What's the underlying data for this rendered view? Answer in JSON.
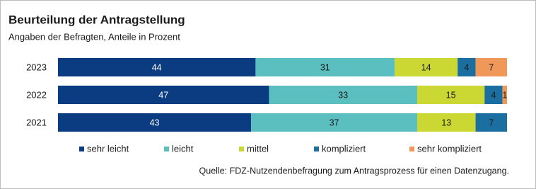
{
  "chart_data": {
    "type": "stacked-bar-horizontal",
    "title": "Beurteilung der Antragstellung",
    "subtitle": "Angaben der Befragten, Anteile in Prozent",
    "categories": [
      "2023",
      "2022",
      "2021"
    ],
    "series": [
      {
        "name": "sehr leicht",
        "color": "#0b3b80",
        "values": [
          44,
          47,
          43
        ]
      },
      {
        "name": "leicht",
        "color": "#5bbfc0",
        "values": [
          31,
          33,
          37
        ]
      },
      {
        "name": "mittel",
        "color": "#cbd834",
        "values": [
          14,
          15,
          13
        ]
      },
      {
        "name": "kompliziert",
        "color": "#1a6fa0",
        "values": [
          4,
          4,
          7
        ]
      },
      {
        "name": "sehr kompliziert",
        "color": "#f0975a",
        "values": [
          7,
          1,
          null
        ]
      }
    ],
    "source": "Quelle: FDZ-Nutzendenbefragung zum Antragsprozess für einen Datenzugang."
  }
}
